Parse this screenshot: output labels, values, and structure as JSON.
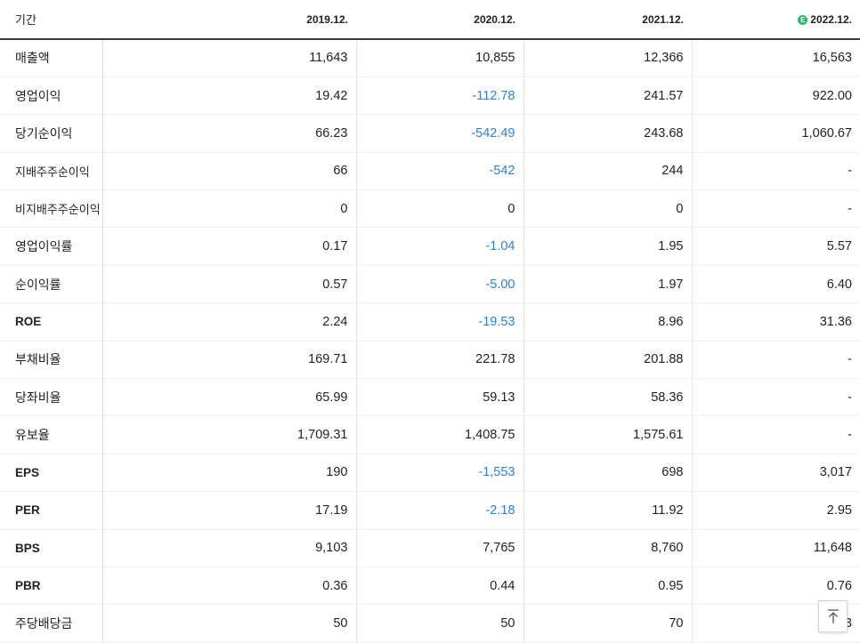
{
  "header": {
    "period_label": "기간",
    "estimate_badge": "E",
    "columns": [
      "2019.12.",
      "2020.12.",
      "2021.12.",
      "2022.12."
    ]
  },
  "rows": [
    {
      "label": "매출액",
      "values": [
        "11,643",
        "10,855",
        "12,366",
        "16,563"
      ]
    },
    {
      "label": "영업이익",
      "values": [
        "19.42",
        "-112.78",
        "241.57",
        "922.00"
      ]
    },
    {
      "label": "당기순이익",
      "values": [
        "66.23",
        "-542.49",
        "243.68",
        "1,060.67"
      ]
    },
    {
      "label": "지배주주순이익",
      "values": [
        "66",
        "-542",
        "244",
        "-"
      ]
    },
    {
      "label": "비지배주주순이익",
      "values": [
        "0",
        "0",
        "0",
        "-"
      ]
    },
    {
      "label": "영업이익률",
      "values": [
        "0.17",
        "-1.04",
        "1.95",
        "5.57"
      ]
    },
    {
      "label": "순이익률",
      "values": [
        "0.57",
        "-5.00",
        "1.97",
        "6.40"
      ]
    },
    {
      "label": "ROE",
      "values": [
        "2.24",
        "-19.53",
        "8.96",
        "31.36"
      ]
    },
    {
      "label": "부채비율",
      "values": [
        "169.71",
        "221.78",
        "201.88",
        "-"
      ]
    },
    {
      "label": "당좌비율",
      "values": [
        "65.99",
        "59.13",
        "58.36",
        "-"
      ]
    },
    {
      "label": "유보율",
      "values": [
        "1,709.31",
        "1,408.75",
        "1,575.61",
        "-"
      ]
    },
    {
      "label": "EPS",
      "values": [
        "190",
        "-1,553",
        "698",
        "3,017"
      ]
    },
    {
      "label": "PER",
      "values": [
        "17.19",
        "-2.18",
        "11.92",
        "2.95"
      ]
    },
    {
      "label": "BPS",
      "values": [
        "9,103",
        "7,765",
        "8,760",
        "11,648"
      ]
    },
    {
      "label": "PBR",
      "values": [
        "0.36",
        "0.44",
        "0.95",
        "0.76"
      ]
    },
    {
      "label": "주당배당금",
      "values": [
        "50",
        "50",
        "70",
        "3"
      ]
    }
  ],
  "colors": {
    "negative": "#2f80d1",
    "estimate_badge": "#2bb673"
  },
  "icons": {
    "scroll_top": "arrow-up-icon"
  }
}
